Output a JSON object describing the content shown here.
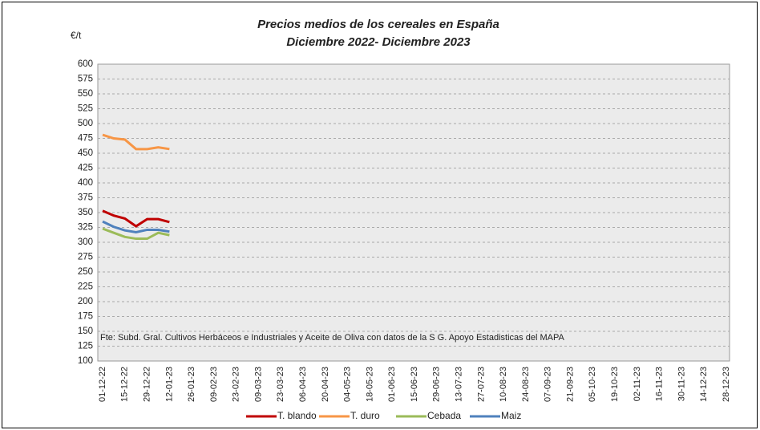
{
  "chart_data": {
    "type": "line",
    "title": "Precios medios de los cereales en España",
    "subtitle": "Diciembre 2022- Diciembre 2023",
    "y_label": "€/t",
    "annotation": "Fte: Subd. Gral. Cultivos Herbáceos e Industriales y Aceite de Oliva con datos de la S G. Apoyo Estadisticas del MAPA",
    "categories": [
      "01-12-22",
      null,
      "15-12-22",
      null,
      "29-12-22",
      null,
      "12-01-23",
      null,
      "26-01-23",
      null,
      "09-02-23",
      null,
      "23-02-23",
      null,
      "09-03-23",
      null,
      "23-03-23",
      null,
      "06-04-23",
      null,
      "20-04-23",
      null,
      "04-05-23",
      null,
      "18-05-23",
      null,
      "01-06-23",
      null,
      "15-06-23",
      null,
      "29-06-23",
      null,
      "13-07-23",
      null,
      "27-07-23",
      null,
      "10-08-23",
      null,
      "24-08-23",
      null,
      "07-09-23",
      null,
      "21-09-23",
      null,
      "05-10-23",
      null,
      "19-10-23",
      null,
      "02-11-23",
      null,
      "16-11-23",
      null,
      "30-11-23",
      null,
      "14-12-23",
      null,
      "28-12-23"
    ],
    "series": [
      {
        "name": "T. blando",
        "color": "#c00000",
        "values": [
          353,
          345,
          340,
          327,
          339,
          339,
          334,
          null,
          null,
          null,
          null,
          null,
          null,
          null,
          null,
          null,
          null,
          null,
          null,
          null,
          null,
          null,
          null,
          null,
          null,
          null,
          null,
          null,
          null,
          null,
          null,
          null,
          null,
          null,
          null,
          null,
          null,
          null,
          null,
          null,
          null,
          null,
          null,
          null,
          null,
          null,
          null,
          null,
          null,
          null,
          null,
          null,
          null,
          null,
          null,
          null,
          null
        ]
      },
      {
        "name": "T. duro",
        "color": "#f79646",
        "values": [
          481,
          475,
          473,
          457,
          457,
          460,
          457,
          null,
          null,
          null,
          null,
          null,
          null,
          null,
          null,
          null,
          null,
          null,
          null,
          null,
          null,
          null,
          null,
          null,
          null,
          null,
          null,
          null,
          null,
          null,
          null,
          null,
          null,
          null,
          null,
          null,
          null,
          null,
          null,
          null,
          null,
          null,
          null,
          null,
          null,
          null,
          null,
          null,
          null,
          null,
          null,
          null,
          null,
          null,
          null,
          null,
          null
        ]
      },
      {
        "name": "Cebada",
        "color": "#9bbb59",
        "values": [
          323,
          316,
          309,
          306,
          306,
          316,
          312,
          null,
          null,
          null,
          null,
          null,
          null,
          null,
          null,
          null,
          null,
          null,
          null,
          null,
          null,
          null,
          null,
          null,
          null,
          null,
          null,
          null,
          null,
          null,
          null,
          null,
          null,
          null,
          null,
          null,
          null,
          null,
          null,
          null,
          null,
          null,
          null,
          null,
          null,
          null,
          null,
          null,
          null,
          null,
          null,
          null,
          null,
          null,
          null,
          null,
          null
        ]
      },
      {
        "name": "Maiz",
        "color": "#4f81bd",
        "values": [
          335,
          326,
          320,
          317,
          321,
          321,
          318,
          null,
          null,
          null,
          null,
          null,
          null,
          null,
          null,
          null,
          null,
          null,
          null,
          null,
          null,
          null,
          null,
          null,
          null,
          null,
          null,
          null,
          null,
          null,
          null,
          null,
          null,
          null,
          null,
          null,
          null,
          null,
          null,
          null,
          null,
          null,
          null,
          null,
          null,
          null,
          null,
          null,
          null,
          null,
          null,
          null,
          null,
          null,
          null,
          null,
          null
        ]
      }
    ],
    "ylim": [
      100,
      600
    ],
    "yticks": [
      100,
      125,
      150,
      175,
      200,
      225,
      250,
      275,
      300,
      325,
      350,
      375,
      400,
      425,
      450,
      475,
      500,
      525,
      550,
      575,
      600
    ],
    "grid": true,
    "legend": "bottom"
  }
}
